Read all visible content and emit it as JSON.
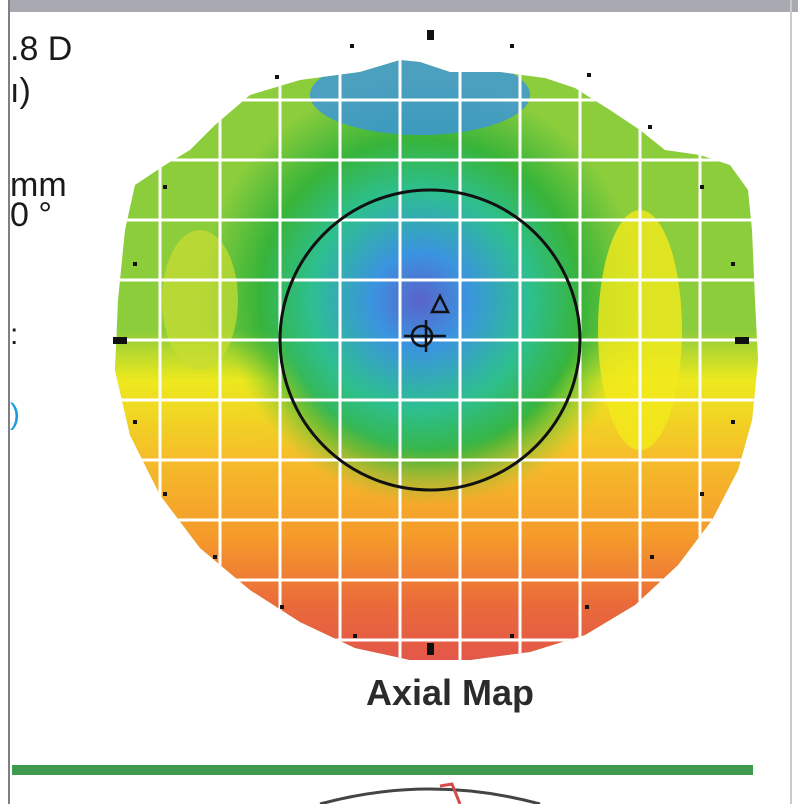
{
  "side_labels": {
    "power_fragment": ".8 D",
    "paren_fragment": "ı)",
    "mm_fragment": "mm",
    "degree_fragment": "0 °",
    "colon_fragment": ":",
    "blue_fragment": ")"
  },
  "map": {
    "caption": "Axial Map",
    "colors": {
      "violet": "#5a63c9",
      "blue": "#3b93e0",
      "teal": "#2dbf8f",
      "green": "#38b43a",
      "light_green": "#8ccd3c",
      "yellow": "#f2ea1c",
      "orange": "#f59a2b",
      "red_orange": "#ea6a3a",
      "red": "#e2554a",
      "grid": "#ffffff",
      "outline": "#111111"
    }
  },
  "footer": {
    "bar_color": "#3f9a50"
  }
}
